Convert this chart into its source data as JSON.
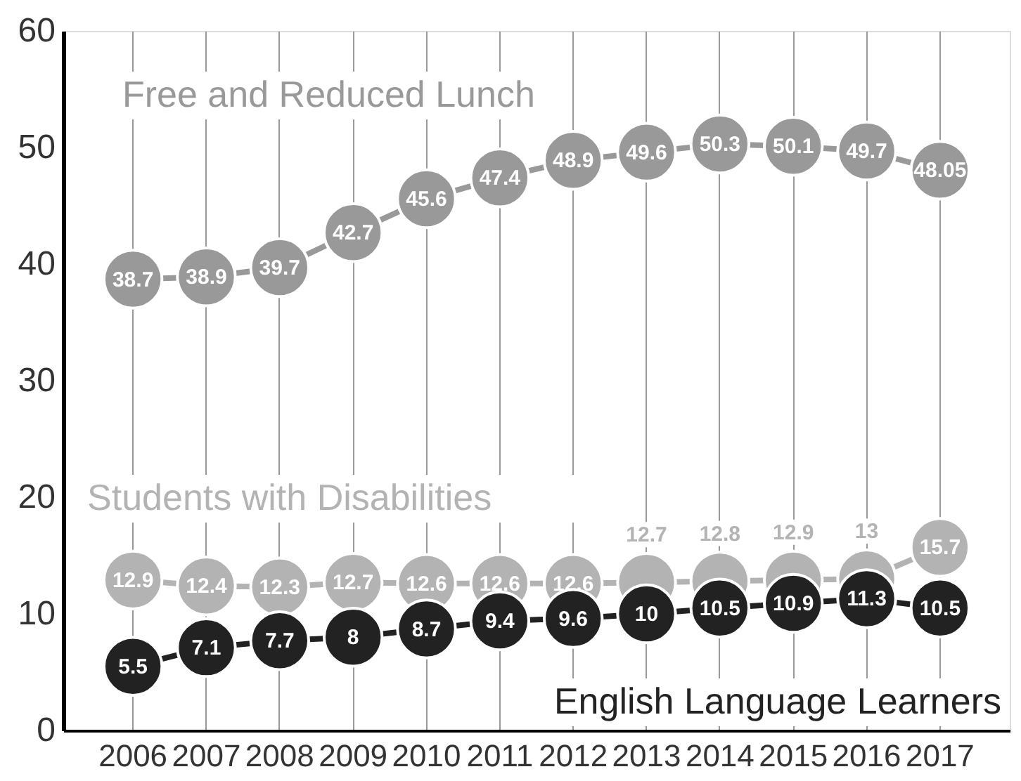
{
  "chart_data": {
    "type": "line",
    "categories": [
      "2006",
      "2007",
      "2008",
      "2009",
      "2010",
      "2011",
      "2012",
      "2013",
      "2014",
      "2015",
      "2016",
      "2017"
    ],
    "series": [
      {
        "name": "Free and Reduced Lunch",
        "color": "#999999",
        "values": [
          38.7,
          38.9,
          39.7,
          42.7,
          45.6,
          47.4,
          48.9,
          49.6,
          50.3,
          50.1,
          49.7,
          48.05
        ]
      },
      {
        "name": "Students with Disabilities",
        "color": "#b3b3b3",
        "values": [
          12.9,
          12.4,
          12.3,
          12.7,
          12.6,
          12.6,
          12.6,
          12.7,
          12.8,
          12.9,
          13,
          15.7
        ]
      },
      {
        "name": "English Language Learners",
        "color": "#222222",
        "values": [
          5.5,
          7.1,
          7.7,
          8,
          8.7,
          9.4,
          9.6,
          10,
          10.5,
          10.9,
          11.3,
          10.5
        ]
      }
    ],
    "ylim": [
      0,
      60
    ],
    "yticks": [
      0,
      10,
      20,
      30,
      40,
      50,
      60
    ],
    "grid": "x",
    "marker": "circle",
    "line_style": "solid",
    "data_labels": true,
    "legend": false
  }
}
